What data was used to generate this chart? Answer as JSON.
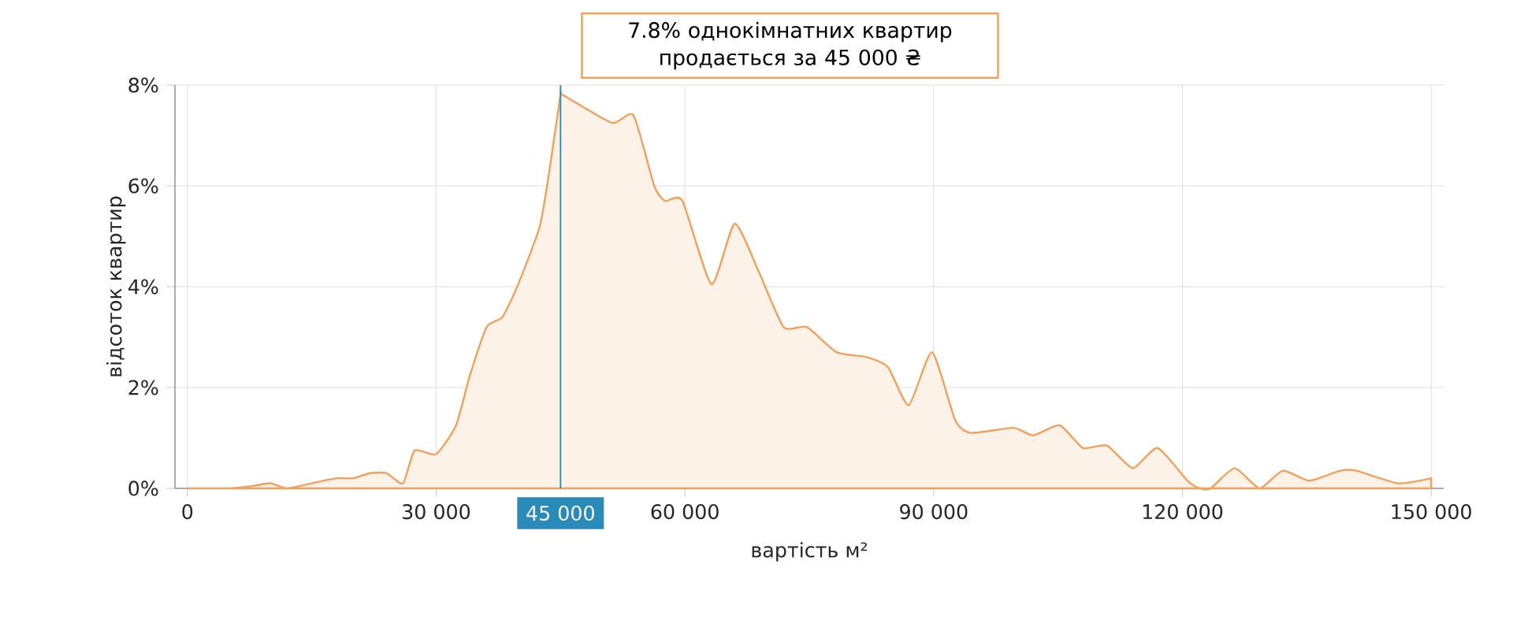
{
  "chart_data": {
    "type": "area",
    "xlabel": "вартість м²",
    "ylabel": "відсоток квартир",
    "x": [
      0,
      5000,
      8000,
      10000,
      12000,
      15000,
      18000,
      20000,
      22000,
      24000,
      26000,
      27400,
      30000,
      32400,
      34000,
      36100,
      38000,
      39900,
      42500,
      43700,
      45000,
      45300,
      51200,
      53800,
      56300,
      57600,
      59700,
      63200,
      66000,
      68900,
      71900,
      74700,
      78300,
      82000,
      84500,
      87000,
      89800,
      92600,
      94500,
      99600,
      102000,
      105200,
      108000,
      110900,
      114000,
      117000,
      120600,
      122100,
      123400,
      126300,
      129300,
      132100,
      135300,
      139000,
      141000,
      146000,
      150000
    ],
    "values": [
      0,
      0,
      0.05,
      0.1,
      0,
      0.1,
      0.2,
      0.2,
      0.3,
      0.3,
      0.1,
      0.75,
      0.68,
      1.25,
      2.2,
      3.2,
      3.4,
      4.05,
      5.2,
      6.35,
      7.8,
      7.8,
      7.25,
      7.4,
      6.0,
      5.7,
      5.7,
      4.05,
      5.25,
      4.3,
      3.2,
      3.2,
      2.7,
      2.6,
      2.4,
      1.65,
      2.7,
      1.35,
      1.1,
      1.2,
      1.05,
      1.25,
      0.8,
      0.85,
      0.4,
      0.8,
      0.15,
      0,
      0,
      0.4,
      0,
      0.35,
      0.15,
      0.35,
      0.35,
      0.1,
      0.2
    ],
    "color": "#f0a15e",
    "xlim": [
      -1500,
      151500
    ],
    "xticks": [
      {
        "value": 0,
        "label": "0"
      },
      {
        "value": 30000,
        "label": "30 000"
      },
      {
        "value": 60000,
        "label": "60 000"
      },
      {
        "value": 90000,
        "label": "90 000"
      },
      {
        "value": 120000,
        "label": "120 000"
      },
      {
        "value": 150000,
        "label": "150 000"
      }
    ],
    "ylim": [
      0,
      8
    ],
    "yticks": [
      {
        "value": 0,
        "label": "0%"
      },
      {
        "value": 2,
        "label": "2%"
      },
      {
        "value": 4,
        "label": "4%"
      },
      {
        "value": 6,
        "label": "6%"
      },
      {
        "value": 8,
        "label": "8%"
      }
    ],
    "grid": true,
    "ref_lines": [
      {
        "axis": "x",
        "value": 45000,
        "label": "45 000",
        "color": "#2a8ab8"
      }
    ],
    "annotations": [
      "7.8% однокімнатних квартир продається за 45 000 ₴"
    ]
  }
}
